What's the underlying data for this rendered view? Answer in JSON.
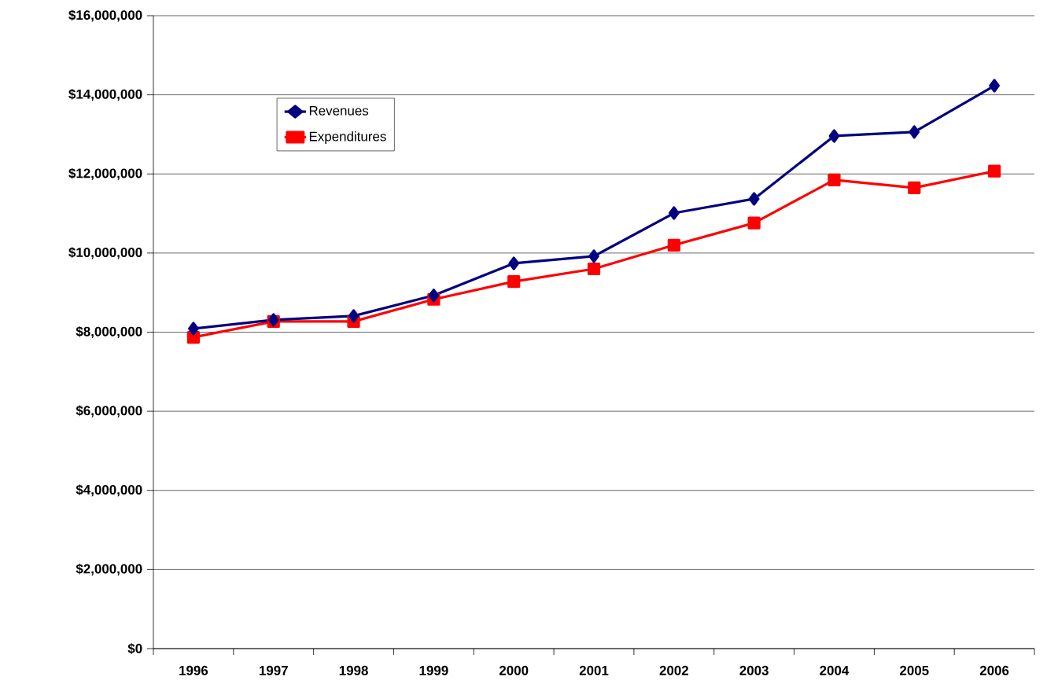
{
  "chart_data": {
    "type": "line",
    "categories": [
      "1996",
      "1997",
      "1998",
      "1999",
      "2000",
      "2001",
      "2002",
      "2003",
      "2004",
      "2005",
      "2006"
    ],
    "series": [
      {
        "name": "Revenues",
        "color": "#000080",
        "marker": "diamond",
        "values": [
          8090000,
          8310000,
          8410000,
          8930000,
          9740000,
          9920000,
          11010000,
          11370000,
          12960000,
          13060000,
          14230000
        ]
      },
      {
        "name": "Expenditures",
        "color": "#ff0000",
        "marker": "square",
        "values": [
          7870000,
          8270000,
          8270000,
          8830000,
          9280000,
          9600000,
          10200000,
          10760000,
          11850000,
          11650000,
          12070000
        ]
      }
    ],
    "ylim": [
      0,
      16000000
    ],
    "yticks": [
      {
        "value": 0,
        "label": "$0"
      },
      {
        "value": 2000000,
        "label": "$2,000,000"
      },
      {
        "value": 4000000,
        "label": "$4,000,000"
      },
      {
        "value": 6000000,
        "label": "$6,000,000"
      },
      {
        "value": 8000000,
        "label": "$8,000,000"
      },
      {
        "value": 10000000,
        "label": "$10,000,000"
      },
      {
        "value": 12000000,
        "label": "$12,000,000"
      },
      {
        "value": 14000000,
        "label": "$14,000,000"
      },
      {
        "value": 16000000,
        "label": "$16,000,000"
      }
    ],
    "grid": "y",
    "legend": "top left",
    "line_style": "solid"
  }
}
